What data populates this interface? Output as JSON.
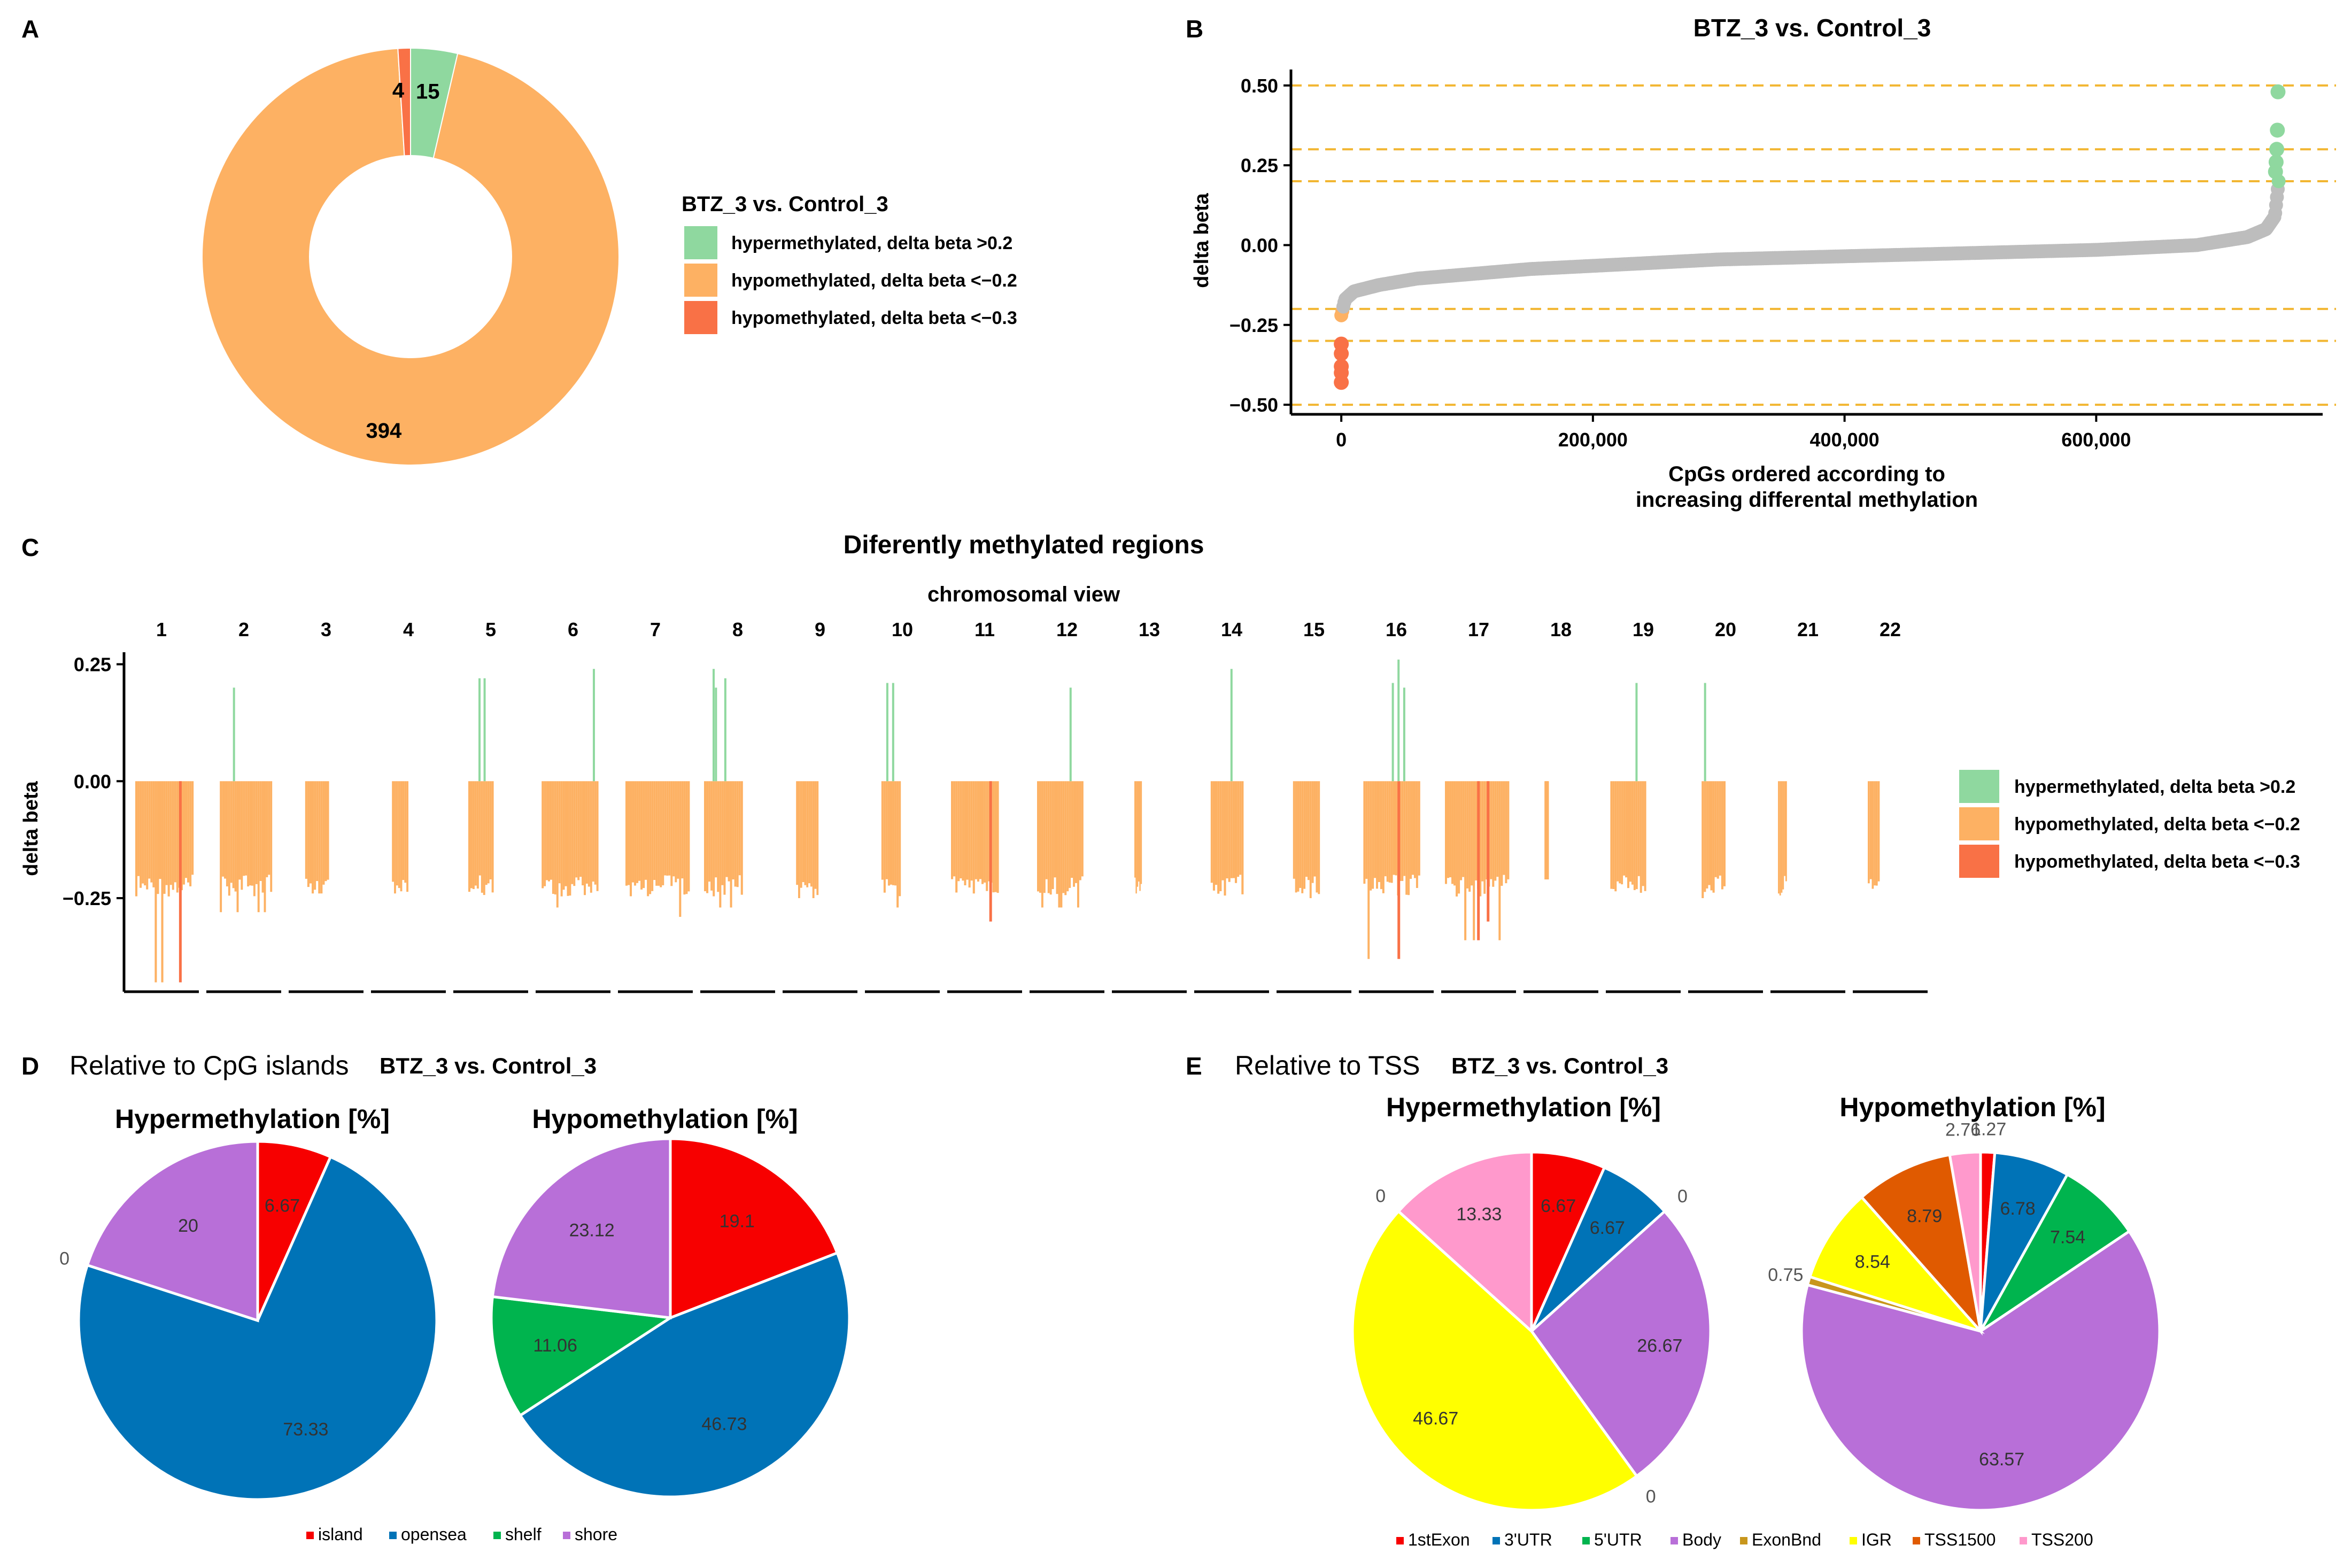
{
  "panel_labels": {
    "a": "A",
    "b": "B",
    "c": "C",
    "d": "D",
    "e": "E"
  },
  "chart_data": [
    {
      "id": "A",
      "type": "pie",
      "donut": true,
      "legend_title": "BTZ_3 vs. Control_3",
      "slices": [
        {
          "label": "hypermethylated, delta beta >0.2",
          "value": 15,
          "display": "15",
          "color": "#8fd89f"
        },
        {
          "label": "hypomethylated, delta beta <−0.2",
          "value": 394,
          "display": "394",
          "color": "#fdb163"
        },
        {
          "label": "hypomethylated, delta beta <−0.3",
          "value": 4,
          "display": "4",
          "color": "#f97146"
        }
      ],
      "legend_position": "right"
    },
    {
      "id": "B",
      "type": "scatter",
      "title": "BTZ_3 vs. Control_3",
      "xlabel": "CpGs ordered according to\nincreasing differental methylation",
      "ylabel": "delta beta",
      "x_ticks": [
        0,
        200000,
        400000,
        600000
      ],
      "x_tick_labels": [
        "0",
        "200,000",
        "400,000",
        "600,000"
      ],
      "y_ticks": [
        -0.5,
        -0.25,
        0.0,
        0.25,
        0.5
      ],
      "y_tick_labels": [
        "−0.50",
        "−0.25",
        "0.00",
        "0.25",
        "0.50"
      ],
      "xlim": [
        -40000,
        780000
      ],
      "ylim": [
        -0.53,
        0.55
      ],
      "reference_lines": [
        -0.5,
        -0.3,
        -0.2,
        0.2,
        0.3,
        0.5
      ],
      "reference_line_color": "#f2b632",
      "n_points": 745000,
      "curve": {
        "x": [
          0,
          3000,
          10000,
          30000,
          60000,
          150000,
          300000,
          450000,
          600000,
          680000,
          720000,
          735000,
          742000,
          745000
        ],
        "y": [
          -0.22,
          -0.17,
          -0.145,
          -0.125,
          -0.105,
          -0.075,
          -0.045,
          -0.03,
          -0.015,
          0.0,
          0.025,
          0.05,
          0.09,
          0.2
        ]
      },
      "highlight_points": [
        {
          "x": 0,
          "y": -0.43,
          "group": "hypo_0.3"
        },
        {
          "x": 0,
          "y": -0.4,
          "group": "hypo_0.3"
        },
        {
          "x": 0,
          "y": -0.38,
          "group": "hypo_0.3"
        },
        {
          "x": 0,
          "y": -0.34,
          "group": "hypo_0.3"
        },
        {
          "x": 0,
          "y": -0.31,
          "group": "hypo_0.3"
        },
        {
          "x": 744500,
          "y": 0.48,
          "group": "hyper"
        },
        {
          "x": 744000,
          "y": 0.36,
          "group": "hyper"
        },
        {
          "x": 743500,
          "y": 0.3,
          "group": "hyper"
        },
        {
          "x": 743000,
          "y": 0.26,
          "group": "hyper"
        },
        {
          "x": 742500,
          "y": 0.23,
          "group": "hyper"
        }
      ],
      "colors": {
        "neutral": "#bdbdbd",
        "hypo_0.2": "#fdb163",
        "hypo_0.3": "#f97146",
        "hyper": "#8fd89f"
      }
    },
    {
      "id": "C",
      "type": "bar",
      "title": "Diferently methylated regions",
      "subtitle": "chromosomal view",
      "ylabel": "delta beta",
      "y_ticks": [
        -0.25,
        0.0,
        0.25
      ],
      "y_tick_labels": [
        "−0.25",
        "0.00",
        "0.25"
      ],
      "ylim": [
        -0.45,
        0.27
      ],
      "chromosomes": [
        {
          "label": "1",
          "n_neg": 16,
          "min": -0.43,
          "pos": [],
          "strong": [
            {
              "pos": 0.75,
              "value": -0.43
            }
          ]
        },
        {
          "label": "2",
          "n_neg": 10,
          "min": -0.28,
          "pos": [
            {
              "pos": 0.25,
              "value": 0.2
            }
          ],
          "strong": []
        },
        {
          "label": "3",
          "n_neg": 8,
          "min": -0.24,
          "pos": [],
          "strong": []
        },
        {
          "label": "4",
          "n_neg": 6,
          "min": -0.24,
          "pos": [],
          "strong": []
        },
        {
          "label": "5",
          "n_neg": 12,
          "min": -0.27,
          "pos": [
            {
              "pos": 0.4,
              "value": 0.22
            },
            {
              "pos": 0.6,
              "value": 0.22
            }
          ],
          "strong": []
        },
        {
          "label": "6",
          "n_neg": 18,
          "min": -0.27,
          "pos": [
            {
              "pos": 0.9,
              "value": 0.24
            }
          ],
          "strong": []
        },
        {
          "label": "7",
          "n_neg": 20,
          "min": -0.29,
          "pos": [],
          "strong": []
        },
        {
          "label": "8",
          "n_neg": 14,
          "min": -0.27,
          "pos": [
            {
              "pos": 0.22,
              "value": 0.24
            },
            {
              "pos": 0.28,
              "value": 0.2
            },
            {
              "pos": 0.52,
              "value": 0.22
            }
          ],
          "strong": []
        },
        {
          "label": "9",
          "n_neg": 8,
          "min": -0.25,
          "pos": [],
          "strong": []
        },
        {
          "label": "10",
          "n_neg": 10,
          "min": -0.27,
          "pos": [
            {
              "pos": 0.25,
              "value": 0.21
            },
            {
              "pos": 0.55,
              "value": 0.21
            }
          ],
          "strong": []
        },
        {
          "label": "11",
          "n_neg": 14,
          "min": -0.3,
          "pos": [],
          "strong": [
            {
              "pos": 0.8,
              "value": -0.3
            }
          ]
        },
        {
          "label": "12",
          "n_neg": 12,
          "min": -0.27,
          "pos": [
            {
              "pos": 0.7,
              "value": 0.2
            }
          ],
          "strong": []
        },
        {
          "label": "13",
          "n_neg": 5,
          "min": -0.24,
          "pos": [],
          "strong": []
        },
        {
          "label": "14",
          "n_neg": 10,
          "min": -0.25,
          "pos": [
            {
              "pos": 0.6,
              "value": 0.24
            }
          ],
          "strong": []
        },
        {
          "label": "15",
          "n_neg": 8,
          "min": -0.25,
          "pos": [],
          "strong": []
        },
        {
          "label": "16",
          "n_neg": 16,
          "min": -0.38,
          "pos": [
            {
              "pos": 0.5,
              "value": 0.21
            },
            {
              "pos": 0.6,
              "value": 0.26
            },
            {
              "pos": 0.7,
              "value": 0.2
            }
          ],
          "strong": [
            {
              "pos": 0.6,
              "value": -0.38
            }
          ]
        },
        {
          "label": "17",
          "n_neg": 18,
          "min": -0.34,
          "pos": [],
          "strong": [
            {
              "pos": 0.5,
              "value": -0.34
            },
            {
              "pos": 0.65,
              "value": -0.3
            }
          ]
        },
        {
          "label": "18",
          "n_neg": 2,
          "min": -0.21,
          "pos": [],
          "strong": []
        },
        {
          "label": "19",
          "n_neg": 14,
          "min": -0.29,
          "pos": [
            {
              "pos": 0.7,
              "value": 0.21
            }
          ],
          "strong": []
        },
        {
          "label": "20",
          "n_neg": 8,
          "min": -0.25,
          "pos": [
            {
              "pos": 0.1,
              "value": 0.21
            }
          ],
          "strong": []
        },
        {
          "label": "21",
          "n_neg": 4,
          "min": -0.26,
          "pos": [],
          "strong": []
        },
        {
          "label": "22",
          "n_neg": 5,
          "min": -0.23,
          "pos": [],
          "strong": []
        }
      ],
      "legend": [
        {
          "label": "hypermethylated, delta beta >0.2",
          "color": "#8fd89f"
        },
        {
          "label": "hypomethylated, delta beta <−0.2",
          "color": "#fdb163"
        },
        {
          "label": "hypomethylated, delta beta <−0.3",
          "color": "#f97146"
        }
      ],
      "legend_position": "right"
    },
    {
      "id": "D",
      "type": "pie",
      "title": "Relative to CpG islands",
      "comparison": "BTZ_3 vs. Control_3",
      "categories": [
        "island",
        "opensea",
        "shelf",
        "shore"
      ],
      "colors": [
        "#f70000",
        "#0073b7",
        "#00b44e",
        "#b86fd8"
      ],
      "pies": [
        {
          "title": "Hypermethylation [%]",
          "values": [
            6.67,
            73.33,
            0,
            20
          ],
          "labels": [
            "6.67",
            "73.33",
            "0",
            "20"
          ]
        },
        {
          "title": "Hypomethylation [%]",
          "values": [
            19.1,
            46.73,
            11.06,
            23.12
          ],
          "labels": [
            "19.1",
            "46.73",
            "11.06",
            "23.12"
          ]
        }
      ],
      "legend_position": "bottom"
    },
    {
      "id": "E",
      "type": "pie",
      "title": "Relative to TSS",
      "comparison": "BTZ_3 vs. Control_3",
      "categories": [
        "1stExon",
        "3'UTR",
        "5'UTR",
        "Body",
        "ExonBnd",
        "IGR",
        "TSS1500",
        "TSS200"
      ],
      "colors": [
        "#f70000",
        "#0073b7",
        "#00b44e",
        "#b86fd8",
        "#c8961c",
        "#ffff00",
        "#e05a00",
        "#ff99cc"
      ],
      "pies": [
        {
          "title": "Hypermethylation [%]",
          "values": [
            6.67,
            6.67,
            0,
            26.67,
            0,
            46.67,
            0,
            13.33
          ],
          "labels": [
            "6.67",
            "6.67",
            "0",
            "26.67",
            "0",
            "46.67",
            "0",
            "13.33"
          ]
        },
        {
          "title": "Hypomethylation [%]",
          "values": [
            1.27,
            6.78,
            7.54,
            63.57,
            0.75,
            8.54,
            8.79,
            2.76
          ],
          "labels": [
            "1.27",
            "6.78",
            "7.54",
            "63.57",
            "0.75",
            "8.54",
            "8.79",
            "2.76"
          ]
        }
      ],
      "legend_position": "bottom"
    }
  ]
}
